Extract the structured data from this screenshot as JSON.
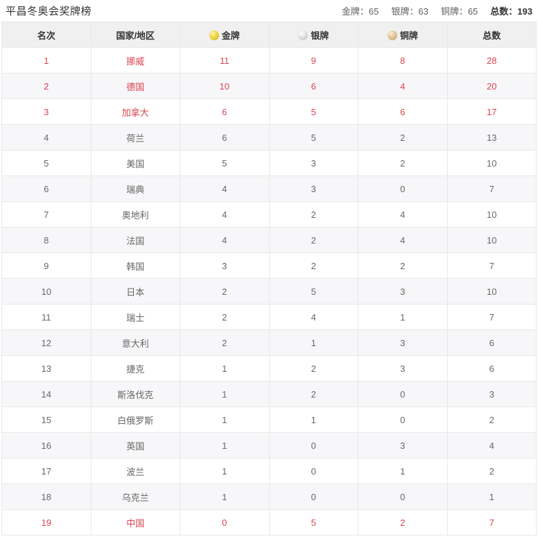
{
  "colors": {
    "accent_red": "#d9434e",
    "header_bg": "#f0f0f0",
    "zebra_row_bg": "#f7f7f9",
    "border": "#e8e8e8",
    "body_text": "#666666",
    "title_text": "#333333",
    "medal_gold": "#e3c031",
    "medal_silver": "#c8c8cb",
    "medal_bronze": "#ccab77"
  },
  "header": {
    "title": "平昌冬奥会奖牌榜",
    "summary": {
      "gold": "金牌：65",
      "silver": "银牌：63",
      "bronze": "铜牌：65",
      "total": "总数：193"
    }
  },
  "table": {
    "columns": {
      "rank": "名次",
      "country": "国家/地区",
      "gold": "金牌",
      "silver": "银牌",
      "bronze": "铜牌",
      "total": "总数"
    },
    "icons": {
      "gold": "gold-medal-icon",
      "silver": "silver-medal-icon",
      "bronze": "bronze-medal-icon"
    },
    "rows": [
      {
        "rank": "1",
        "country": "挪威",
        "gold": "11",
        "silver": "9",
        "bronze": "8",
        "total": "28",
        "highlight": true
      },
      {
        "rank": "2",
        "country": "德国",
        "gold": "10",
        "silver": "6",
        "bronze": "4",
        "total": "20",
        "highlight": true
      },
      {
        "rank": "3",
        "country": "加拿大",
        "gold": "6",
        "silver": "5",
        "bronze": "6",
        "total": "17",
        "highlight": true
      },
      {
        "rank": "4",
        "country": "荷兰",
        "gold": "6",
        "silver": "5",
        "bronze": "2",
        "total": "13",
        "highlight": false
      },
      {
        "rank": "5",
        "country": "美国",
        "gold": "5",
        "silver": "3",
        "bronze": "2",
        "total": "10",
        "highlight": false
      },
      {
        "rank": "6",
        "country": "瑞典",
        "gold": "4",
        "silver": "3",
        "bronze": "0",
        "total": "7",
        "highlight": false
      },
      {
        "rank": "7",
        "country": "奥地利",
        "gold": "4",
        "silver": "2",
        "bronze": "4",
        "total": "10",
        "highlight": false
      },
      {
        "rank": "8",
        "country": "法国",
        "gold": "4",
        "silver": "2",
        "bronze": "4",
        "total": "10",
        "highlight": false
      },
      {
        "rank": "9",
        "country": "韩国",
        "gold": "3",
        "silver": "2",
        "bronze": "2",
        "total": "7",
        "highlight": false
      },
      {
        "rank": "10",
        "country": "日本",
        "gold": "2",
        "silver": "5",
        "bronze": "3",
        "total": "10",
        "highlight": false
      },
      {
        "rank": "11",
        "country": "瑞士",
        "gold": "2",
        "silver": "4",
        "bronze": "1",
        "total": "7",
        "highlight": false
      },
      {
        "rank": "12",
        "country": "意大利",
        "gold": "2",
        "silver": "1",
        "bronze": "3",
        "total": "6",
        "highlight": false
      },
      {
        "rank": "13",
        "country": "捷克",
        "gold": "1",
        "silver": "2",
        "bronze": "3",
        "total": "6",
        "highlight": false
      },
      {
        "rank": "14",
        "country": "斯洛伐克",
        "gold": "1",
        "silver": "2",
        "bronze": "0",
        "total": "3",
        "highlight": false
      },
      {
        "rank": "15",
        "country": "白俄罗斯",
        "gold": "1",
        "silver": "1",
        "bronze": "0",
        "total": "2",
        "highlight": false
      },
      {
        "rank": "16",
        "country": "英国",
        "gold": "1",
        "silver": "0",
        "bronze": "3",
        "total": "4",
        "highlight": false
      },
      {
        "rank": "17",
        "country": "波兰",
        "gold": "1",
        "silver": "0",
        "bronze": "1",
        "total": "2",
        "highlight": false
      },
      {
        "rank": "18",
        "country": "乌克兰",
        "gold": "1",
        "silver": "0",
        "bronze": "0",
        "total": "1",
        "highlight": false
      },
      {
        "rank": "19",
        "country": "中国",
        "gold": "0",
        "silver": "5",
        "bronze": "2",
        "total": "7",
        "highlight": true
      }
    ]
  }
}
